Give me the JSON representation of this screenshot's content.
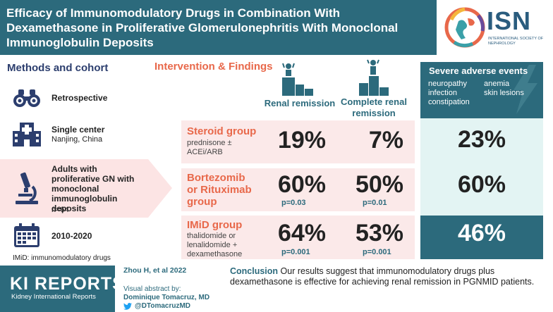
{
  "header": {
    "title": "Efficacy of Immunomodulatory Drugs in Combination With Dexamethasone in Proliferative Glomerulonephritis With Monoclonal Immunoglobulin Deposits"
  },
  "logo": {
    "name": "ISN",
    "subtitle": "INTERNATIONAL SOCIETY OF NEPHROLOGY"
  },
  "methods": {
    "title": "Methods and cohort",
    "items": [
      {
        "label": "Retrospective",
        "sub": "",
        "icon": "binoculars-icon"
      },
      {
        "label": "Single center",
        "sub": "Nanjing, China",
        "icon": "hospital-icon"
      },
      {
        "label": "Adults with proliferative GN with monoclonal immunoglobulin deposits",
        "sub": "n=64",
        "icon": "microscope-icon"
      },
      {
        "label": "2010-2020",
        "sub": "",
        "icon": "calendar-icon"
      }
    ],
    "abbreviation": "IMiD: immunomodulatory drugs"
  },
  "intervention": {
    "title": "Intervention & Findings",
    "col_renal": "Renal remission",
    "col_complete": "Complete renal remission",
    "groups": [
      {
        "name": "Steroid group",
        "detail": "prednisone ± ACEi/ARB",
        "renal": "19%",
        "complete": "7%",
        "p_renal": "",
        "p_complete": "",
        "adverse": "23%"
      },
      {
        "name": "Bortezomib or Rituximab group",
        "detail": "",
        "renal": "60%",
        "complete": "50%",
        "p_renal": "p=0.03",
        "p_complete": "p=0.01",
        "adverse": "60%"
      },
      {
        "name": "IMiD group",
        "detail": "thalidomide or lenalidomide + dexamethasone",
        "renal": "64%",
        "complete": "53%",
        "p_renal": "p=0.001",
        "p_complete": "p=0.001",
        "adverse": "46%"
      }
    ]
  },
  "adverse": {
    "title": "Severe adverse events",
    "col1": [
      "neuropathy",
      "infection",
      "constipation"
    ],
    "col2": [
      "anemia",
      "skin lesions"
    ]
  },
  "footer": {
    "journal": "KI REPORTS",
    "journal_sub": "Kidney International Reports",
    "citation": "Zhou H, et al 2022",
    "visual_by": "Visual abstract by:",
    "author": "Dominique Tomacruz, MD",
    "twitter": "@DTomacruzMD",
    "conclusion_label": "Conclusion",
    "conclusion_text": "Our results suggest that immunomodulatory drugs plus dexamethasone is effective for achieving renal remission in PGNMID patients."
  },
  "colors": {
    "teal": "#2c6a7c",
    "orange": "#e8684a",
    "pink_band": "#fbe9e9",
    "aqua_band": "#e3f4f3",
    "navy": "#2c3e6e"
  }
}
